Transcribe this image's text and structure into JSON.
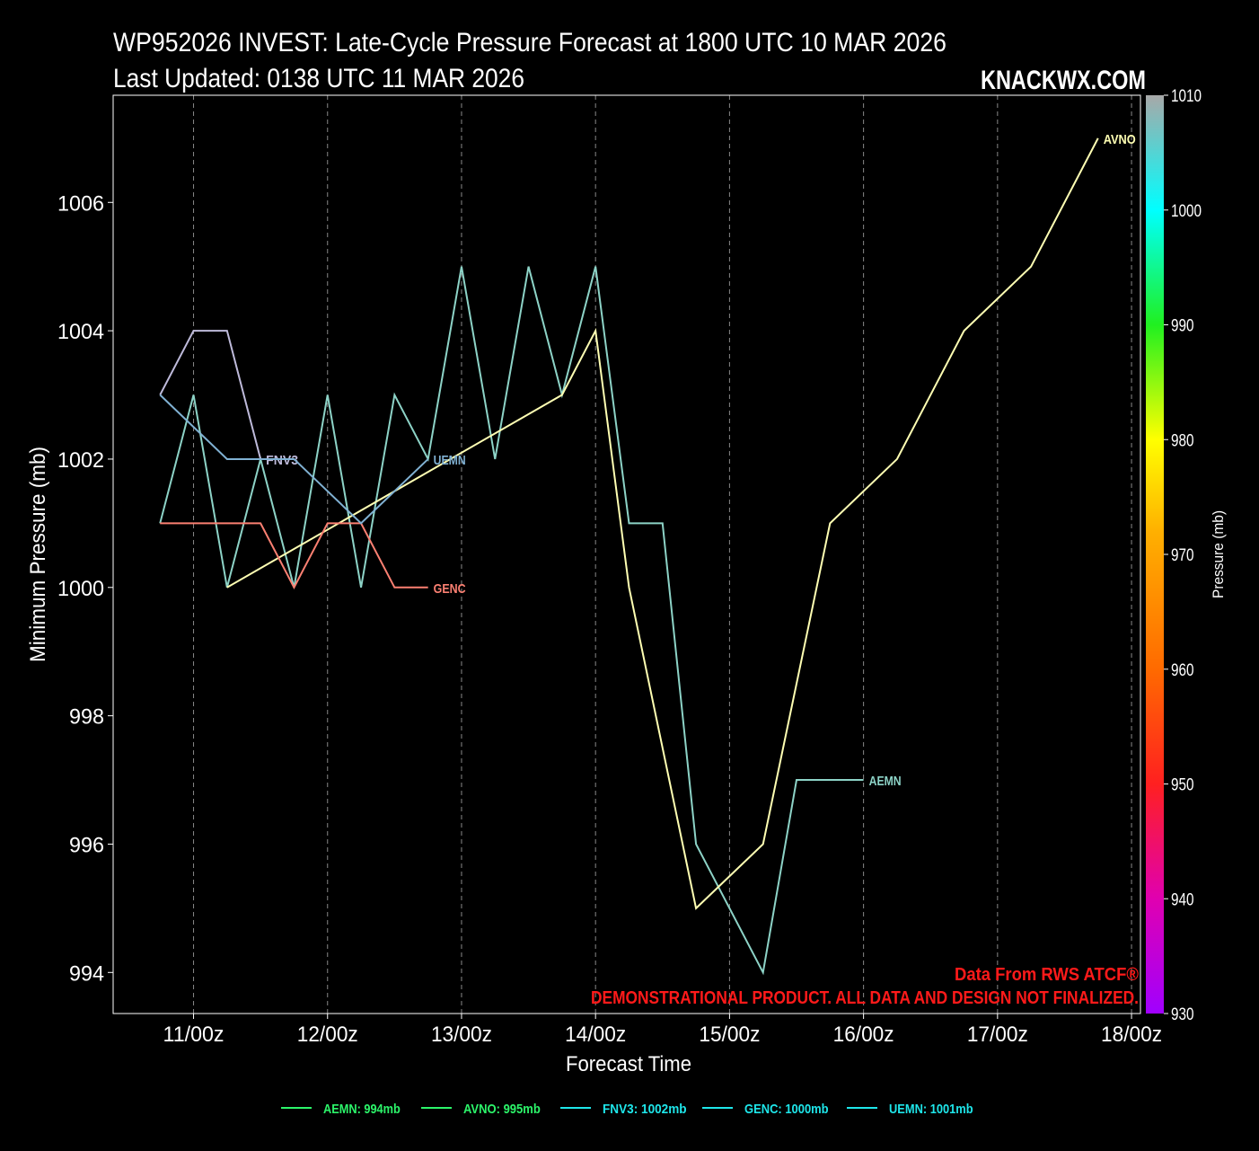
{
  "chart_data": {
    "type": "line",
    "title": "WP952026 INVEST: Late-Cycle Pressure Forecast at 1800 UTC 10 MAR 2026",
    "subtitle": "Last Updated: 0138 UTC 11 MAR 2026",
    "brand": "KNACKWX.COM",
    "xlabel": "Forecast Time",
    "ylabel": "Minimum Pressure (mb)",
    "x_units": "forecast hours from 1800 UTC 10 MAR",
    "xlim": [
      -8.4,
      175.6
    ],
    "ylim": [
      993.36,
      1007.67
    ],
    "grid": "vertical dashed",
    "x_ticks": [
      {
        "x": 6,
        "label": "11/00z"
      },
      {
        "x": 30,
        "label": "12/00z"
      },
      {
        "x": 54,
        "label": "13/00z"
      },
      {
        "x": 78,
        "label": "14/00z"
      },
      {
        "x": 102,
        "label": "15/00z"
      },
      {
        "x": 126,
        "label": "16/00z"
      },
      {
        "x": 150,
        "label": "17/00z"
      },
      {
        "x": 174,
        "label": "18/00z"
      }
    ],
    "y_ticks": [
      {
        "y": 994,
        "label": "994"
      },
      {
        "y": 996,
        "label": "996"
      },
      {
        "y": 998,
        "label": "998"
      },
      {
        "y": 1000,
        "label": "1000"
      },
      {
        "y": 1002,
        "label": "1002"
      },
      {
        "y": 1004,
        "label": "1004"
      },
      {
        "y": 1006,
        "label": "1006"
      }
    ],
    "series": [
      {
        "name": "AEMN",
        "color": "#8dd3c7",
        "x": [
          0,
          6,
          12,
          18,
          24,
          30,
          36,
          42,
          48,
          54,
          60,
          66,
          72,
          78,
          84,
          90,
          96,
          108,
          114,
          126
        ],
        "y": [
          1001,
          1003,
          1000,
          1002,
          1000,
          1003,
          1000,
          1003,
          1002,
          1005,
          1002,
          1005,
          1003,
          1005,
          1001,
          1001,
          996,
          994,
          997,
          997
        ]
      },
      {
        "name": "AVNO",
        "color": "#ffffb3",
        "x": [
          12,
          72,
          78,
          84,
          96,
          108,
          120,
          132,
          144,
          156,
          168
        ],
        "y": [
          1000,
          1003,
          1004,
          1000,
          995,
          996,
          1001,
          1002,
          1004,
          1005,
          1007
        ]
      },
      {
        "name": "FNV3",
        "color": "#bebada",
        "x": [
          0,
          6,
          12,
          18
        ],
        "y": [
          1003,
          1004,
          1004,
          1002
        ]
      },
      {
        "name": "GENC",
        "color": "#fb8072",
        "x": [
          0,
          18,
          24,
          30,
          36,
          42,
          48
        ],
        "y": [
          1001,
          1001,
          1000,
          1001,
          1001,
          1000,
          1000
        ]
      },
      {
        "name": "UEMN",
        "color": "#80b1d3",
        "x": [
          0,
          12,
          18,
          24,
          36,
          48
        ],
        "y": [
          1003,
          1002,
          1002,
          1002,
          1001,
          1002
        ]
      }
    ],
    "legend": {
      "placement": "bottom",
      "entries": [
        {
          "label": "AEMN: 994mb",
          "color": "#2cf56a"
        },
        {
          "label": "AVNO: 995mb",
          "color": "#2cf56a"
        },
        {
          "label": "FNV3: 1002mb",
          "color": "#1ee6ea"
        },
        {
          "label": "GENC: 1000mb",
          "color": "#1ee6ea"
        },
        {
          "label": "UEMN: 1001mb",
          "color": "#1ee6ea"
        }
      ]
    },
    "colorbar": {
      "label": "Pressure (mb)",
      "range": [
        930,
        1010
      ],
      "ticks": [
        "930",
        "940",
        "950",
        "960",
        "970",
        "980",
        "990",
        "1000",
        "1010"
      ],
      "stops": [
        {
          "v": 930,
          "c": "#a000ff"
        },
        {
          "v": 940,
          "c": "#e000b0"
        },
        {
          "v": 950,
          "c": "#ff2020"
        },
        {
          "v": 960,
          "c": "#ff6a00"
        },
        {
          "v": 972,
          "c": "#ffb000"
        },
        {
          "v": 980,
          "c": "#ffff00"
        },
        {
          "v": 990,
          "c": "#20f020"
        },
        {
          "v": 1000,
          "c": "#00ffff"
        },
        {
          "v": 1010,
          "c": "#a8a8a8"
        }
      ]
    },
    "annotations": [
      "Data From RWS ATCF®",
      "DEMONSTRATIONAL PRODUCT. ALL DATA AND DESIGN NOT FINALIZED."
    ]
  }
}
